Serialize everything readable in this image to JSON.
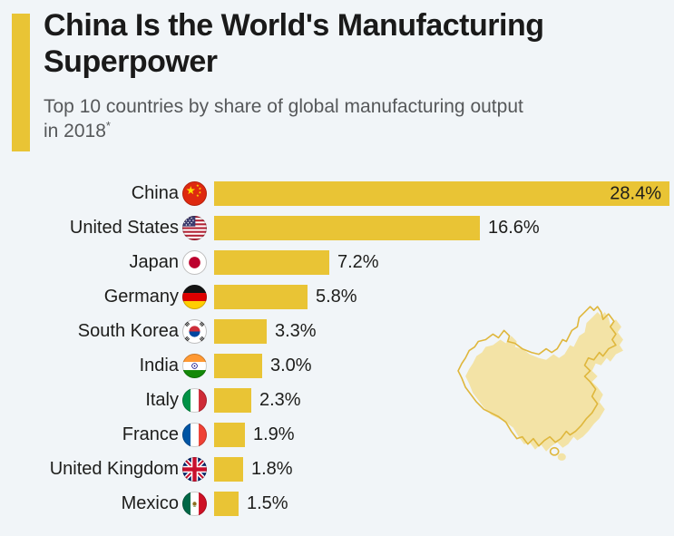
{
  "header": {
    "title": "China Is the World's Manufacturing Superpower",
    "subtitle": "Top 10 countries by share of global manufacturing output in 2018",
    "footnote_marker": "*"
  },
  "colors": {
    "background": "#f1f5f8",
    "bar": "#e9c435",
    "accent_bar": "#e9c435",
    "title_text": "#1a1a1a",
    "subtitle_text": "#56585a",
    "label_text": "#1d1d1b",
    "map_fill": "#f3e3a6",
    "map_outline": "#dfb73d"
  },
  "chart_data": {
    "type": "bar",
    "orientation": "horizontal",
    "title": "China Is the World's Manufacturing Superpower",
    "subtitle": "Top 10 countries by share of global manufacturing output in 2018*",
    "categories": [
      "China",
      "United States",
      "Japan",
      "Germany",
      "South Korea",
      "India",
      "Italy",
      "France",
      "United Kingdom",
      "Mexico"
    ],
    "values": [
      28.4,
      16.6,
      7.2,
      5.8,
      3.3,
      3.0,
      2.3,
      1.9,
      1.8,
      1.5
    ],
    "value_labels": [
      "28.4%",
      "16.6%",
      "7.2%",
      "5.8%",
      "3.3%",
      "3.0%",
      "2.3%",
      "1.9%",
      "1.8%",
      "1.5%"
    ],
    "unit": "%",
    "xlim": [
      0,
      28.4
    ],
    "flags": [
      "cn",
      "us",
      "jp",
      "de",
      "kr",
      "in",
      "it",
      "fr",
      "gb",
      "mx"
    ],
    "value_label_inside": [
      true,
      false,
      false,
      false,
      false,
      false,
      false,
      false,
      false,
      false
    ],
    "legend": "none",
    "grid": "off"
  },
  "decoration": {
    "map": "china-silhouette"
  }
}
